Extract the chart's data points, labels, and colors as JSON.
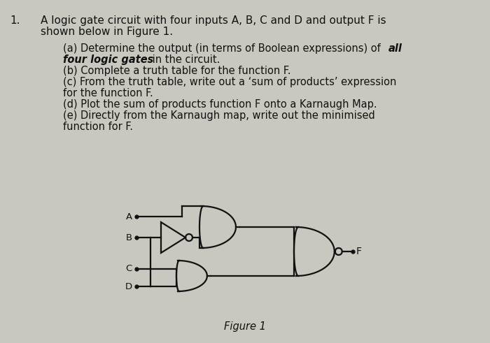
{
  "bg_color": "#c8c8c0",
  "text_color": "#111111",
  "title_number": "1.",
  "figure_label": "Figure 1",
  "inputs": [
    "A",
    "B",
    "C",
    "D"
  ],
  "output": "F",
  "fs_title": 10.5,
  "fs_body": 9.8,
  "lw": 1.6
}
